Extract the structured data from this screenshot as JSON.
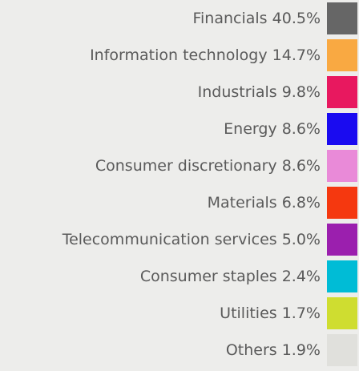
{
  "legend": {
    "items": [
      {
        "name": "Financials",
        "value": "40.5%",
        "color": "#666666"
      },
      {
        "name": "Information technology",
        "value": "14.7%",
        "color": "#f9a942"
      },
      {
        "name": "Industrials",
        "value": "9.8%",
        "color": "#e8185f"
      },
      {
        "name": "Energy",
        "value": "8.6%",
        "color": "#1a0bf0"
      },
      {
        "name": "Consumer discretionary",
        "value": "8.6%",
        "color": "#e98ad8"
      },
      {
        "name": "Materials",
        "value": "6.8%",
        "color": "#f5380f"
      },
      {
        "name": "Telecommunication services",
        "value": "5.0%",
        "color": "#9b1fae"
      },
      {
        "name": "Consumer staples",
        "value": "2.4%",
        "color": "#00bcd6"
      },
      {
        "name": "Utilities",
        "value": "1.7%",
        "color": "#cfdd30"
      },
      {
        "name": "Others",
        "value": "1.9%",
        "color": "#e0e0dc"
      }
    ]
  }
}
